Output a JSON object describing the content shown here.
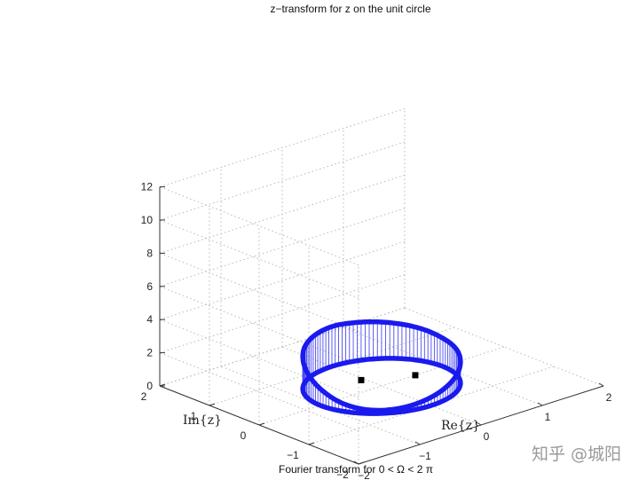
{
  "chart_data": {
    "type": "line",
    "title": "z−transform for z on the unit circle",
    "xlabel": "Re{z}",
    "ylabel": "Im{z}",
    "zlabel": "",
    "xlim": [
      -2,
      2
    ],
    "ylim": [
      -2,
      2
    ],
    "zlim": [
      0,
      12
    ],
    "x_ticks": [
      "−2",
      "−1",
      "0",
      "1",
      "2"
    ],
    "x_tick_values": [
      -2,
      -1,
      0,
      1,
      2
    ],
    "y_ticks": [
      "−2",
      "−1",
      "0",
      "1",
      "2"
    ],
    "y_tick_values": [
      -2,
      -1,
      0,
      1,
      2
    ],
    "z_ticks": [
      "0",
      "2",
      "4",
      "6",
      "8",
      "10",
      "12"
    ],
    "z_tick_values": [
      0,
      2,
      4,
      6,
      8,
      10,
      12
    ],
    "grid": true,
    "series": [
      {
        "curve": "|H(e^{jΩ})| along the unit circle z = e^{jΩ}, 0 ≤ Ω < 2π",
        "color": "#1a1aee",
        "stem_color": "#4b4bf0",
        "omega": [
          0,
          0.393,
          0.785,
          1.178,
          1.571,
          1.963,
          2.356,
          2.749,
          3.142,
          3.534,
          3.927,
          4.32,
          4.712,
          5.105,
          5.498,
          5.89
        ],
        "magnitude": [
          1.7,
          1.95,
          2.15,
          2.3,
          2.4,
          2.3,
          2.05,
          1.6,
          1.0,
          0.45,
          0.2,
          0.25,
          0.5,
          0.85,
          1.2,
          1.5
        ]
      }
    ],
    "points": [
      {
        "re": 0.55,
        "im": 0.0,
        "z": 0,
        "marker": "square",
        "color": "#000000"
      },
      {
        "re": -0.05,
        "im": 0.35,
        "z": 0,
        "marker": "square",
        "color": "#000000"
      }
    ]
  },
  "caption": "Fourier transform for 0 < Ω < 2 π",
  "watermark": "知乎 @城阳"
}
